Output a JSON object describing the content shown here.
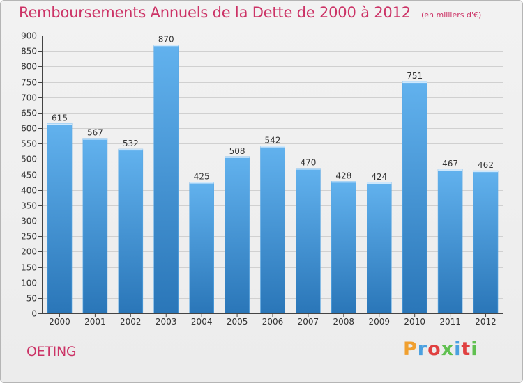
{
  "header": {
    "title": "Remboursements Annuels de la Dette de 2000 à 2012",
    "unit": "(en milliers d'€)"
  },
  "footer": {
    "commune": "OETING",
    "logo_text": "Proxiti",
    "logo_colors": [
      "#f0a030",
      "#4aa0e0",
      "#e04040",
      "#60c050",
      "#4aa0e0",
      "#e04040",
      "#60c050"
    ]
  },
  "colors": {
    "title": "#cc3366",
    "bar_top": "#62b2ee",
    "bar_bottom": "#2a76b8",
    "grid": "#d0d0d0",
    "axis": "#444444"
  },
  "chart_data": {
    "type": "bar",
    "title": "Remboursements Annuels de la Dette de 2000 à 2012",
    "categories": [
      "2000",
      "2001",
      "2002",
      "2003",
      "2004",
      "2005",
      "2006",
      "2007",
      "2008",
      "2009",
      "2010",
      "2011",
      "2012"
    ],
    "values": [
      615,
      567,
      532,
      870,
      425,
      508,
      542,
      470,
      428,
      424,
      751,
      467,
      462
    ],
    "ylim": [
      0,
      900
    ],
    "yticks": [
      0,
      50,
      100,
      150,
      200,
      250,
      300,
      350,
      400,
      450,
      500,
      550,
      600,
      650,
      700,
      750,
      800,
      850,
      900
    ],
    "grid": true,
    "data_labels": true
  }
}
